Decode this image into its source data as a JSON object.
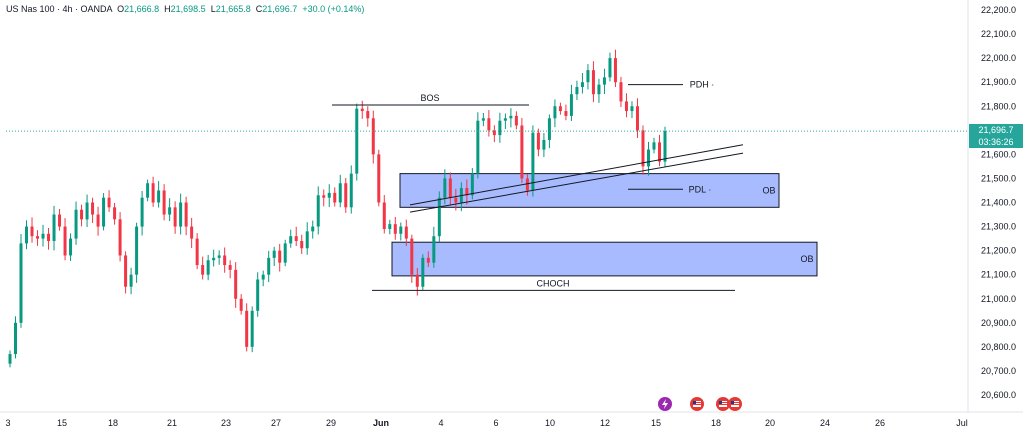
{
  "legend": {
    "symbol": "US Nas 100 · 4h · OANDA",
    "o_label": "O",
    "o_value": "21,666.8",
    "h_label": "H",
    "h_value": "21,698.5",
    "l_label": "L",
    "l_value": "21,665.8",
    "c_label": "C",
    "c_value": "21,696.7",
    "change": "+30.0 (+0.14%)"
  },
  "price_badge": {
    "price": "21,696.7",
    "countdown": "03:36:26"
  },
  "colors": {
    "up": "#089981",
    "down": "#f23645",
    "zone": "#a9bbff",
    "zone_border": "#131722",
    "badge": "#26a69a"
  },
  "chart_data": {
    "type": "candlestick",
    "y_axis": {
      "ticks": [
        20600,
        20700,
        20800,
        20900,
        21000,
        21100,
        21200,
        21300,
        21400,
        21500,
        21600,
        21700,
        21800,
        21900,
        22000,
        22100,
        22200
      ],
      "ylim": [
        20570,
        22220
      ]
    },
    "x_axis": {
      "tick_labels": [
        "3",
        "15",
        "18",
        "21",
        "23",
        "27",
        "29",
        "Jun",
        "4",
        "6",
        "10",
        "12",
        "15",
        "18",
        "20",
        "24",
        "26",
        "Jul"
      ]
    },
    "last_price": 21696.7,
    "candles_close": [
      20770,
      20900,
      21230,
      21300,
      21260,
      21250,
      21270,
      21240,
      21350,
      21300,
      21180,
      21250,
      21370,
      21330,
      21400,
      21350,
      21300,
      21420,
      21380,
      21330,
      21180,
      21050,
      21100,
      21300,
      21420,
      21480,
      21400,
      21450,
      21350,
      21380,
      21300,
      21400,
      21300,
      21250,
      21140,
      21100,
      21160,
      21170,
      21180,
      21140,
      21120,
      21000,
      20950,
      20800,
      20950,
      21080,
      21100,
      21170,
      21200,
      21150,
      21230,
      21260,
      21240,
      21210,
      21280,
      21300,
      21430,
      21420,
      21440,
      21400,
      21480,
      21380,
      21520,
      21790,
      21780,
      21750,
      21600,
      21400,
      21290,
      21310,
      21270,
      21300,
      21250,
      21100,
      21050,
      21170,
      21150,
      21260,
      21420,
      21500,
      21420,
      21400,
      21460,
      21430,
      21520,
      21740,
      21750,
      21700,
      21680,
      21740,
      21750,
      21760,
      21720,
      21500,
      21450,
      21690,
      21620,
      21660,
      21750,
      21800,
      21780,
      21760,
      21850,
      21880,
      21900,
      21950,
      21850,
      21890,
      21920,
      22000,
      21900,
      21820,
      21780,
      21800,
      21700,
      21550,
      21620,
      21650,
      21570,
      21697
    ],
    "annotations": [
      {
        "type": "label",
        "text": "BOS"
      },
      {
        "type": "label",
        "text": "PDH"
      },
      {
        "type": "label",
        "text": "PDL"
      },
      {
        "type": "label",
        "text": "CHOCH"
      },
      {
        "type": "zone",
        "text": "OB",
        "y_top": 21520,
        "y_bottom": 21380
      },
      {
        "type": "zone",
        "text": "OB",
        "y_top": 21235,
        "y_bottom": 21095
      }
    ],
    "labels": {
      "bos": "BOS",
      "pdh": "PDH ·",
      "pdl": "PDL ·",
      "choch": "CHOCH",
      "ob1": "OB",
      "ob2": "OB"
    }
  }
}
